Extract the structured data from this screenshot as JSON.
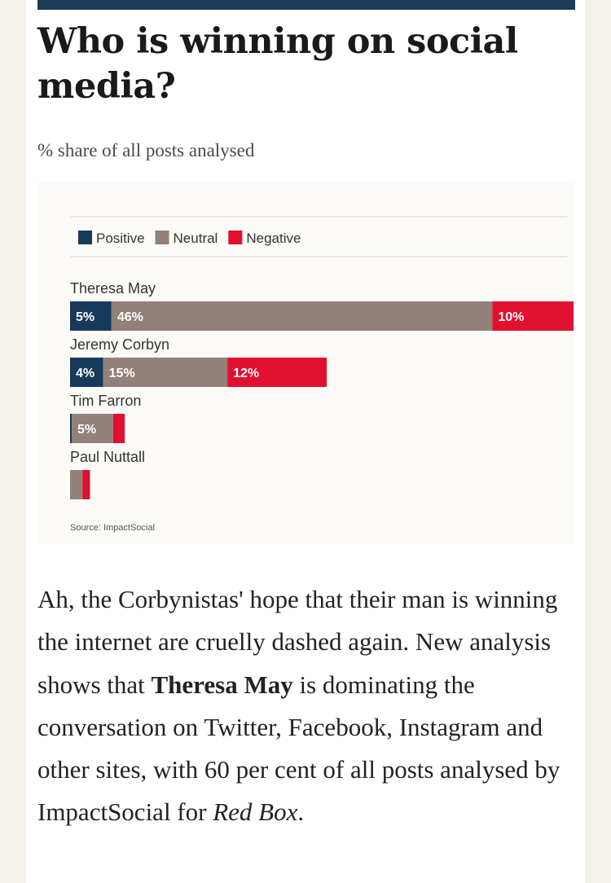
{
  "article": {
    "headline": "Who is winning on social media?",
    "subtitle": "% share of all posts analysed",
    "body": {
      "part1": "Ah, the Corbynistas' hope that their man is winning the internet are cruelly dashed again. New analysis shows that ",
      "bold": "Theresa May",
      "part2": " is dominating the conversation on Twitter, Facebook, Instagram and other sites, with 60 per cent of all posts analysed by ImpactSocial for ",
      "italic": "Red Box",
      "part3": "."
    }
  },
  "colors": {
    "topbar": "#1d3a56",
    "positive": "#173a5a",
    "neutral": "#928178",
    "negative": "#e0102e",
    "panel": "#fbfaf6"
  },
  "chart_data": {
    "type": "bar",
    "orientation": "horizontal",
    "stacked": true,
    "legend_position": "top-left",
    "legend": [
      "Positive",
      "Neutral",
      "Negative"
    ],
    "categories": [
      "Theresa May",
      "Jeremy Corbyn",
      "Tim Farron",
      "Paul Nuttall"
    ],
    "series": [
      {
        "name": "Positive",
        "color": "#173a5a",
        "values": [
          5,
          4,
          0.2,
          0
        ],
        "labels": [
          "5%",
          "4%",
          "",
          ""
        ]
      },
      {
        "name": "Neutral",
        "color": "#928178",
        "values": [
          46,
          15,
          5,
          1.5
        ],
        "labels": [
          "46%",
          "15%",
          "5%",
          ""
        ]
      },
      {
        "name": "Negative",
        "color": "#e0102e",
        "values": [
          10,
          12,
          1.4,
          0.9
        ],
        "labels": [
          "10%",
          "12%",
          "",
          ""
        ]
      }
    ],
    "xlim": [
      0,
      61
    ],
    "grid": false,
    "source": "Source: ImpactSocial"
  }
}
